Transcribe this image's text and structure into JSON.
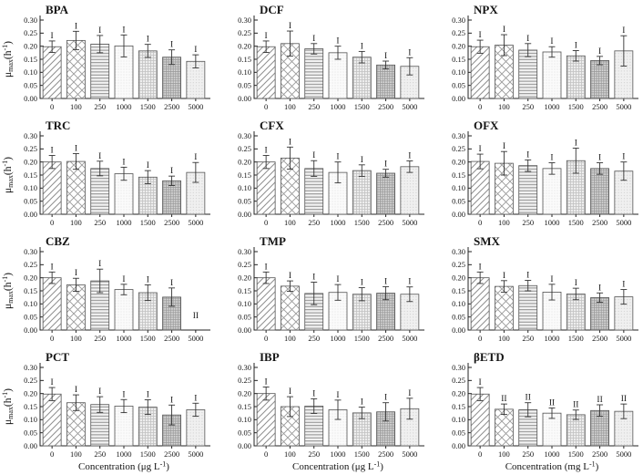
{
  "figure": {
    "background": "#ffffff",
    "axis_color": "#222222",
    "bar_stroke": "#555555",
    "error_color": "#333333",
    "ylim": [
      0,
      0.3
    ],
    "y_ticks": [
      "0.30",
      "0.25",
      "0.20",
      "0.15",
      "0.10",
      "0.05",
      "0.00"
    ],
    "x_categories": [
      "0",
      "100",
      "250",
      "1000",
      "1500",
      "2500",
      "5000"
    ],
    "ylabel": {
      "pre": "μ",
      "sub": "max",
      "mid": "(h",
      "sup": "-1",
      "post": ")"
    },
    "bar_patterns": [
      "diagonal-hatch",
      "crosshatch",
      "horizontal-lines",
      "light-speckle",
      "light-check",
      "dense-check",
      "fine-dots"
    ]
  },
  "chart_data": [
    {
      "id": "BPA",
      "type": "bar",
      "title": "BPA",
      "categories": [
        "0",
        "100",
        "250",
        "1000",
        "1500",
        "2500",
        "5000"
      ],
      "values": [
        0.198,
        0.222,
        0.208,
        0.201,
        0.182,
        0.158,
        0.142
      ],
      "errors": [
        0.022,
        0.035,
        0.033,
        0.042,
        0.025,
        0.028,
        0.025
      ],
      "sig_labels": [
        "I",
        "I",
        "I",
        "I",
        "I",
        "I",
        "I"
      ],
      "ylim": [
        0,
        0.3
      ],
      "xlabel": null,
      "show_ylabel": true
    },
    {
      "id": "DCF",
      "type": "bar",
      "title": "DCF",
      "categories": [
        "0",
        "100",
        "250",
        "1000",
        "1500",
        "2500",
        "5000"
      ],
      "values": [
        0.198,
        0.21,
        0.19,
        0.175,
        0.158,
        0.128,
        0.123
      ],
      "errors": [
        0.022,
        0.048,
        0.02,
        0.025,
        0.022,
        0.015,
        0.033
      ],
      "sig_labels": [
        "I",
        "I",
        "I",
        "I",
        "I",
        "I",
        "I"
      ],
      "ylim": [
        0,
        0.3
      ],
      "xlabel": null,
      "show_ylabel": false
    },
    {
      "id": "NPX",
      "type": "bar",
      "title": "NPX",
      "categories": [
        "0",
        "100",
        "250",
        "1000",
        "1500",
        "2500",
        "5000"
      ],
      "values": [
        0.198,
        0.204,
        0.185,
        0.178,
        0.163,
        0.145,
        0.182
      ],
      "errors": [
        0.025,
        0.04,
        0.025,
        0.02,
        0.02,
        0.016,
        0.058
      ],
      "sig_labels": [
        "I",
        "I",
        "I",
        "I",
        "I",
        "I",
        "I"
      ],
      "ylim": [
        0,
        0.3
      ],
      "xlabel": null,
      "show_ylabel": false
    },
    {
      "id": "TRC",
      "type": "bar",
      "title": "TRC",
      "categories": [
        "0",
        "100",
        "250",
        "1000",
        "1500",
        "2500",
        "5000"
      ],
      "values": [
        0.2,
        0.202,
        0.175,
        0.155,
        0.142,
        0.128,
        0.16
      ],
      "errors": [
        0.025,
        0.03,
        0.028,
        0.025,
        0.025,
        0.018,
        0.038
      ],
      "sig_labels": [
        "I",
        "I",
        "I",
        "I",
        "I",
        "I",
        "I"
      ],
      "ylim": [
        0,
        0.3
      ],
      "xlabel": null,
      "show_ylabel": true
    },
    {
      "id": "CFX",
      "type": "bar",
      "title": "CFX",
      "categories": [
        "0",
        "100",
        "250",
        "1000",
        "1500",
        "2500",
        "5000"
      ],
      "values": [
        0.2,
        0.215,
        0.175,
        0.16,
        0.167,
        0.157,
        0.182
      ],
      "errors": [
        0.025,
        0.042,
        0.03,
        0.04,
        0.022,
        0.015,
        0.022
      ],
      "sig_labels": [
        "I",
        "I",
        "I",
        "I",
        "I",
        "I",
        "I"
      ],
      "ylim": [
        0,
        0.3
      ],
      "xlabel": null,
      "show_ylabel": false
    },
    {
      "id": "OFX",
      "type": "bar",
      "title": "OFX",
      "categories": [
        "0",
        "100",
        "250",
        "1000",
        "1500",
        "2500",
        "5000"
      ],
      "values": [
        0.202,
        0.195,
        0.186,
        0.175,
        0.205,
        0.175,
        0.165
      ],
      "errors": [
        0.028,
        0.045,
        0.022,
        0.022,
        0.048,
        0.022,
        0.035
      ],
      "sig_labels": [
        "I",
        "I",
        "I",
        "I",
        "I",
        "I",
        "I"
      ],
      "ylim": [
        0,
        0.3
      ],
      "xlabel": null,
      "show_ylabel": false
    },
    {
      "id": "CBZ",
      "type": "bar",
      "title": "CBZ",
      "categories": [
        "0",
        "100",
        "250",
        "1000",
        "1500",
        "2500",
        "5000"
      ],
      "values": [
        0.2,
        0.173,
        0.188,
        0.155,
        0.143,
        0.126,
        0
      ],
      "errors": [
        0.022,
        0.025,
        0.045,
        0.02,
        0.03,
        0.035,
        0
      ],
      "sig_labels": [
        "I",
        "I",
        "I",
        "I",
        "I",
        "I",
        "II"
      ],
      "ylim": [
        0,
        0.3
      ],
      "xlabel": null,
      "show_ylabel": true
    },
    {
      "id": "TMP",
      "type": "bar",
      "title": "TMP",
      "categories": [
        "0",
        "100",
        "250",
        "1000",
        "1500",
        "2500",
        "5000"
      ],
      "values": [
        0.2,
        0.168,
        0.14,
        0.144,
        0.137,
        0.141,
        0.137
      ],
      "errors": [
        0.022,
        0.02,
        0.043,
        0.03,
        0.025,
        0.025,
        0.028
      ],
      "sig_labels": [
        "I",
        "I",
        "I",
        "I",
        "I",
        "I",
        "I"
      ],
      "ylim": [
        0,
        0.3
      ],
      "xlabel": null,
      "show_ylabel": false
    },
    {
      "id": "SMX",
      "type": "bar",
      "title": "SMX",
      "categories": [
        "0",
        "100",
        "250",
        "1000",
        "1500",
        "2500",
        "5000"
      ],
      "values": [
        0.2,
        0.167,
        0.17,
        0.145,
        0.138,
        0.124,
        0.127
      ],
      "errors": [
        0.022,
        0.022,
        0.02,
        0.03,
        0.022,
        0.018,
        0.028
      ],
      "sig_labels": [
        "I",
        "I",
        "I",
        "I",
        "I",
        "I",
        "I"
      ],
      "ylim": [
        0,
        0.3
      ],
      "xlabel": null,
      "show_ylabel": false
    },
    {
      "id": "PCT",
      "type": "bar",
      "title": "PCT",
      "categories": [
        "0",
        "100",
        "250",
        "1000",
        "1500",
        "2500",
        "5000"
      ],
      "values": [
        0.198,
        0.165,
        0.158,
        0.152,
        0.148,
        0.118,
        0.138
      ],
      "errors": [
        0.025,
        0.03,
        0.03,
        0.025,
        0.028,
        0.038,
        0.025
      ],
      "sig_labels": [
        "I",
        "I",
        "I",
        "I",
        "I",
        "I",
        "I"
      ],
      "ylim": [
        0,
        0.3
      ],
      "xlabel": {
        "pre": "Concentration (μg L",
        "sup": "-1",
        "post": ")"
      },
      "show_ylabel": true
    },
    {
      "id": "IBP",
      "type": "bar",
      "title": "IBP",
      "categories": [
        "0",
        "100",
        "250",
        "1000",
        "1500",
        "2500",
        "5000"
      ],
      "values": [
        0.2,
        0.15,
        0.152,
        0.138,
        0.126,
        0.13,
        0.142
      ],
      "errors": [
        0.025,
        0.038,
        0.028,
        0.037,
        0.022,
        0.035,
        0.04
      ],
      "sig_labels": [
        "I",
        "I",
        "I",
        "I",
        "I",
        "I",
        "I"
      ],
      "ylim": [
        0,
        0.3
      ],
      "xlabel": {
        "pre": "Concentration (μg L",
        "sup": "-1",
        "post": ")"
      },
      "show_ylabel": false
    },
    {
      "id": "bETD",
      "type": "bar",
      "title": "βETD",
      "categories": [
        "0",
        "100",
        "250",
        "1000",
        "1500",
        "2500",
        "5000"
      ],
      "values": [
        0.198,
        0.14,
        0.138,
        0.125,
        0.119,
        0.135,
        0.132
      ],
      "errors": [
        0.025,
        0.02,
        0.027,
        0.02,
        0.018,
        0.022,
        0.028
      ],
      "sig_labels": [
        "I",
        "II",
        "II",
        "II",
        "II",
        "II",
        "II"
      ],
      "ylim": [
        0,
        0.3
      ],
      "xlabel": {
        "pre": "Concentration (mg L",
        "sup": "-1",
        "post": ")"
      },
      "show_ylabel": false
    }
  ]
}
